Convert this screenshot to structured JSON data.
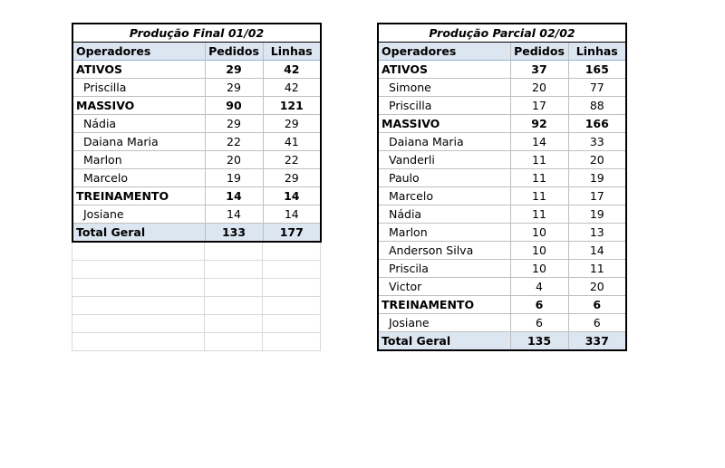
{
  "sheet_left": {
    "title": "Produção Final 01/02",
    "headers": [
      "Operadores",
      "Pedidos",
      "Linhas"
    ],
    "rows": [
      {
        "label": "ATIVOS",
        "pedidos": "29",
        "linhas": "42",
        "group": true
      },
      {
        "label": "Priscilla",
        "pedidos": "29",
        "linhas": "42",
        "group": false
      },
      {
        "label": "MASSIVO",
        "pedidos": "90",
        "linhas": "121",
        "group": true
      },
      {
        "label": "Nádia",
        "pedidos": "29",
        "linhas": "29",
        "group": false
      },
      {
        "label": "Daiana Maria",
        "pedidos": "22",
        "linhas": "41",
        "group": false
      },
      {
        "label": "Marlon",
        "pedidos": "20",
        "linhas": "22",
        "group": false
      },
      {
        "label": "Marcelo",
        "pedidos": "19",
        "linhas": "29",
        "group": false
      },
      {
        "label": "TREINAMENTO",
        "pedidos": "14",
        "linhas": "14",
        "group": true
      },
      {
        "label": "Josiane",
        "pedidos": "14",
        "linhas": "14",
        "group": false
      }
    ],
    "total": {
      "label": "Total Geral",
      "pedidos": "133",
      "linhas": "177"
    }
  },
  "sheet_right": {
    "title": "Produção Parcial 02/02",
    "headers": [
      "Operadores",
      "Pedidos",
      "Linhas"
    ],
    "rows": [
      {
        "label": "ATIVOS",
        "pedidos": "37",
        "linhas": "165",
        "group": true
      },
      {
        "label": "Simone",
        "pedidos": "20",
        "linhas": "77",
        "group": false
      },
      {
        "label": "Priscilla",
        "pedidos": "17",
        "linhas": "88",
        "group": false
      },
      {
        "label": "MASSIVO",
        "pedidos": "92",
        "linhas": "166",
        "group": true
      },
      {
        "label": "Daiana Maria",
        "pedidos": "14",
        "linhas": "33",
        "group": false
      },
      {
        "label": "Vanderli",
        "pedidos": "11",
        "linhas": "20",
        "group": false
      },
      {
        "label": "Paulo",
        "pedidos": "11",
        "linhas": "19",
        "group": false
      },
      {
        "label": "Marcelo",
        "pedidos": "11",
        "linhas": "17",
        "group": false
      },
      {
        "label": "Nádia",
        "pedidos": "11",
        "linhas": "19",
        "group": false
      },
      {
        "label": "Marlon",
        "pedidos": "10",
        "linhas": "13",
        "group": false
      },
      {
        "label": "Anderson Silva",
        "pedidos": "10",
        "linhas": "14",
        "group": false
      },
      {
        "label": "Priscila",
        "pedidos": "10",
        "linhas": "11",
        "group": false
      },
      {
        "label": "Victor",
        "pedidos": "4",
        "linhas": "20",
        "group": false
      },
      {
        "label": "TREINAMENTO",
        "pedidos": "6",
        "linhas": "6",
        "group": true
      },
      {
        "label": "Josiane",
        "pedidos": "6",
        "linhas": "6",
        "group": false
      }
    ],
    "total": {
      "label": "Total Geral",
      "pedidos": "135",
      "linhas": "337"
    }
  },
  "colors": {
    "header_fill": "#dce6f1",
    "border": "#000000",
    "gridline": "#d9d9d9"
  }
}
